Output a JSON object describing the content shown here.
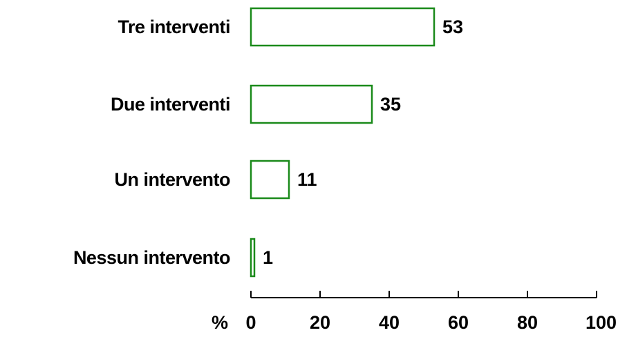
{
  "chart_data": {
    "type": "bar",
    "orientation": "horizontal",
    "categories": [
      "Tre interventi",
      "Due interventi",
      "Un intervento",
      "Nessun intervento"
    ],
    "values": [
      53,
      35,
      11,
      1
    ],
    "value_labels": [
      "53",
      "35",
      "11",
      "1"
    ],
    "xlim": [
      0,
      100
    ],
    "x_ticks": [
      "0",
      "20",
      "40",
      "60",
      "80",
      "100"
    ],
    "x_unit": "%",
    "grid": false,
    "legend": "none",
    "colors": {
      "bar_outline": "#1a8a1a",
      "bar_fill": "#ffffff",
      "axis": "#000000",
      "text": "#000000"
    }
  }
}
